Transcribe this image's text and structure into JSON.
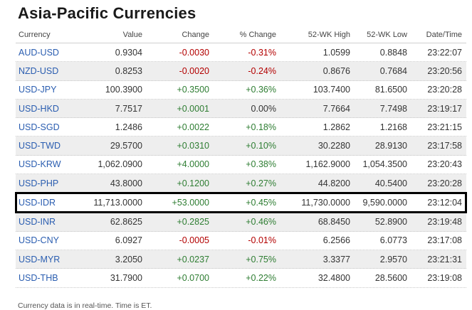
{
  "page": {
    "title": "Asia-Pacific Currencies",
    "footer": "Currency data is in real-time. Time is ET."
  },
  "table": {
    "headers": {
      "currency": "Currency",
      "value": "Value",
      "change": "Change",
      "pct_change": "% Change",
      "high_52wk": "52-WK High",
      "low_52wk": "52-WK Low",
      "datetime": "Date/Time"
    },
    "rows": [
      {
        "currency": "AUD-USD",
        "value": "0.9304",
        "change": "-0.0030",
        "pct_change": "-0.31%",
        "high": "1.0599",
        "low": "0.8848",
        "time": "23:22:07",
        "direction": "neg"
      },
      {
        "currency": "NZD-USD",
        "value": "0.8253",
        "change": "-0.0020",
        "pct_change": "-0.24%",
        "high": "0.8676",
        "low": "0.7684",
        "time": "23:20:56",
        "direction": "neg"
      },
      {
        "currency": "USD-JPY",
        "value": "100.3900",
        "change": "+0.3500",
        "pct_change": "+0.36%",
        "high": "103.7400",
        "low": "81.6500",
        "time": "23:20:28",
        "direction": "pos"
      },
      {
        "currency": "USD-HKD",
        "value": "7.7517",
        "change": "+0.0001",
        "pct_change": "0.00%",
        "high": "7.7664",
        "low": "7.7498",
        "time": "23:19:17",
        "direction": "pos"
      },
      {
        "currency": "USD-SGD",
        "value": "1.2486",
        "change": "+0.0022",
        "pct_change": "+0.18%",
        "high": "1.2862",
        "low": "1.2168",
        "time": "23:21:15",
        "direction": "pos"
      },
      {
        "currency": "USD-TWD",
        "value": "29.5700",
        "change": "+0.0310",
        "pct_change": "+0.10%",
        "high": "30.2280",
        "low": "28.9130",
        "time": "23:17:58",
        "direction": "pos"
      },
      {
        "currency": "USD-KRW",
        "value": "1,062.0900",
        "change": "+4.0000",
        "pct_change": "+0.38%",
        "high": "1,162.9000",
        "low": "1,054.3500",
        "time": "23:20:43",
        "direction": "pos"
      },
      {
        "currency": "USD-PHP",
        "value": "43.8000",
        "change": "+0.1200",
        "pct_change": "+0.27%",
        "high": "44.8200",
        "low": "40.5400",
        "time": "23:20:28",
        "direction": "pos"
      },
      {
        "currency": "USD-IDR",
        "value": "11,713.0000",
        "change": "+53.0000",
        "pct_change": "+0.45%",
        "high": "11,730.0000",
        "low": "9,590.0000",
        "time": "23:12:04",
        "direction": "pos",
        "highlighted": true
      },
      {
        "currency": "USD-INR",
        "value": "62.8625",
        "change": "+0.2825",
        "pct_change": "+0.46%",
        "high": "68.8450",
        "low": "52.8900",
        "time": "23:19:48",
        "direction": "pos"
      },
      {
        "currency": "USD-CNY",
        "value": "6.0927",
        "change": "-0.0005",
        "pct_change": "-0.01%",
        "high": "6.2566",
        "low": "6.0773",
        "time": "23:17:08",
        "direction": "neg"
      },
      {
        "currency": "USD-MYR",
        "value": "3.2050",
        "change": "+0.0237",
        "pct_change": "+0.75%",
        "high": "3.3377",
        "low": "2.9570",
        "time": "23:21:31",
        "direction": "pos"
      },
      {
        "currency": "USD-THB",
        "value": "31.7900",
        "change": "+0.0700",
        "pct_change": "+0.22%",
        "high": "32.4800",
        "low": "28.5600",
        "time": "23:19:08",
        "direction": "pos"
      }
    ]
  },
  "colors": {
    "link": "#2a5db0",
    "negative": "#b30000",
    "positive": "#2e7d32",
    "alt_row": "#eeeeee",
    "highlight_border": "#000000"
  }
}
